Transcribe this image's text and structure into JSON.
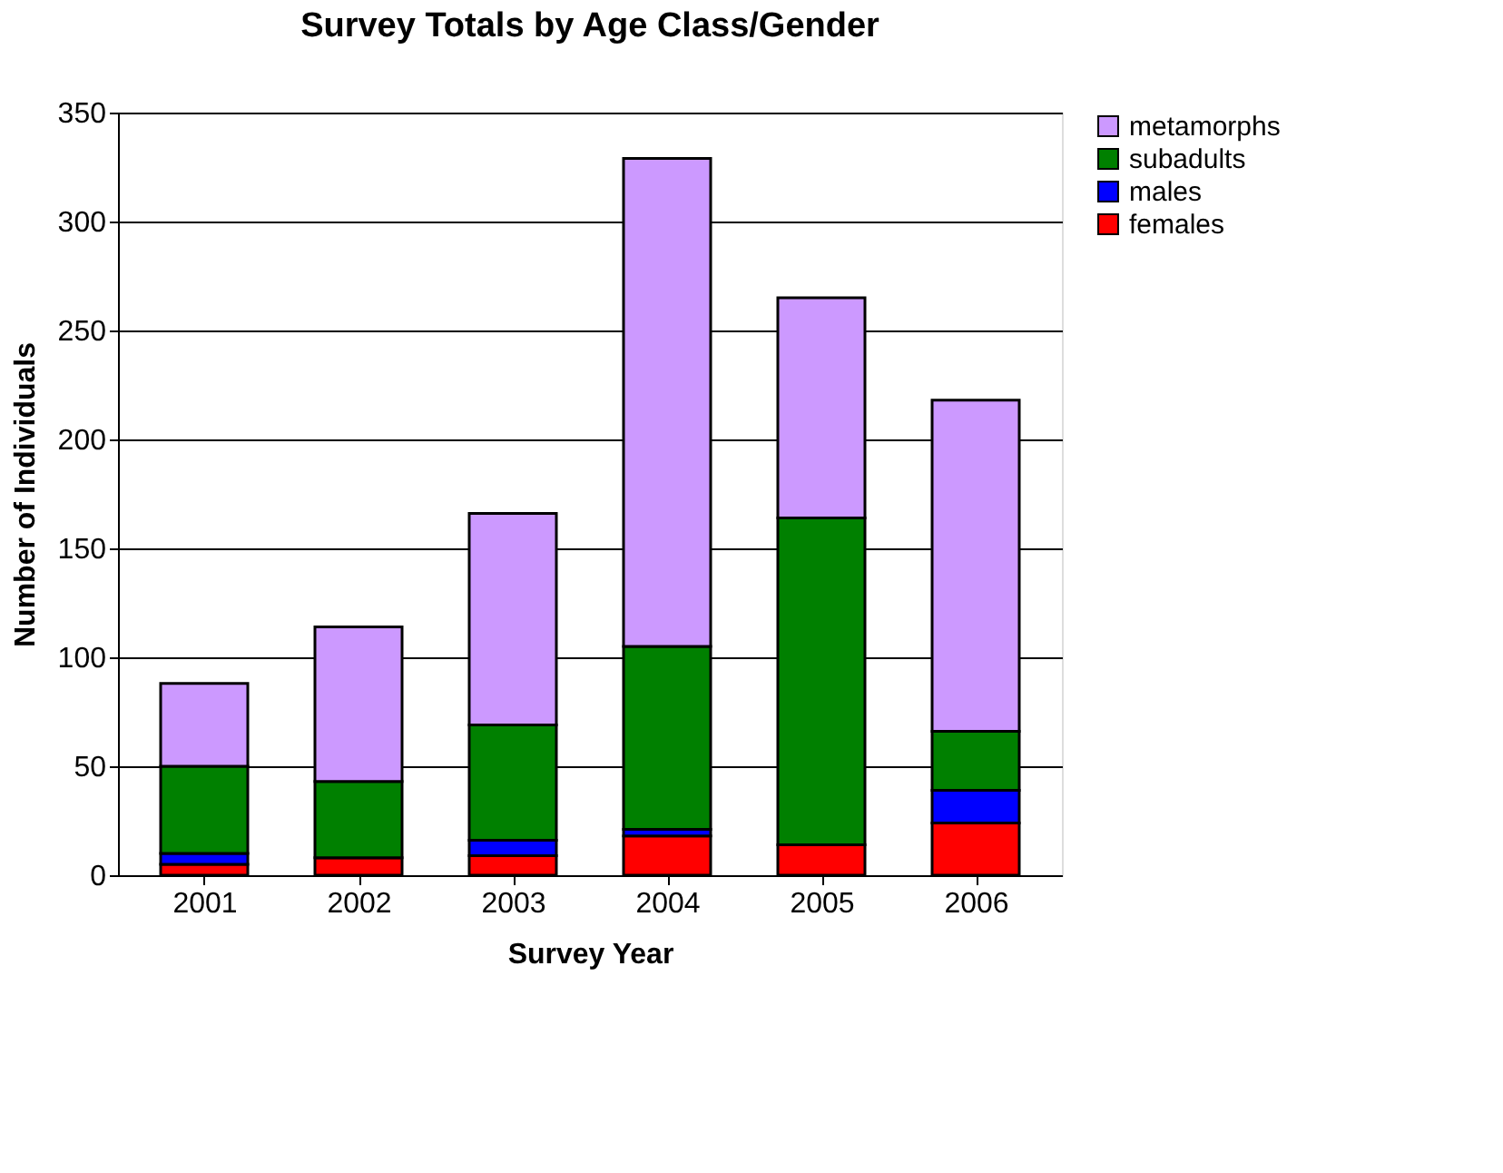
{
  "chart_data": {
    "type": "bar",
    "stacked": true,
    "title": "Survey Totals by Age Class/Gender",
    "xlabel": "Survey Year",
    "ylabel": "Number of Individuals",
    "categories": [
      "2001",
      "2002",
      "2003",
      "2004",
      "2005",
      "2006"
    ],
    "series": [
      {
        "name": "females",
        "color": "#ff0000",
        "values": [
          5,
          8,
          9,
          18,
          14,
          24
        ]
      },
      {
        "name": "males",
        "color": "#0000ff",
        "values": [
          5,
          0,
          7,
          3,
          0,
          15
        ]
      },
      {
        "name": "subadults",
        "color": "#008000",
        "values": [
          40,
          35,
          53,
          84,
          150,
          27
        ]
      },
      {
        "name": "metamorphs",
        "color": "#cc99ff",
        "values": [
          38,
          71,
          97,
          224,
          101,
          152
        ]
      }
    ],
    "ylim": [
      0,
      350
    ],
    "yticks": [
      0,
      50,
      100,
      150,
      200,
      250,
      300,
      350
    ],
    "grid": "y",
    "legend": "right"
  }
}
